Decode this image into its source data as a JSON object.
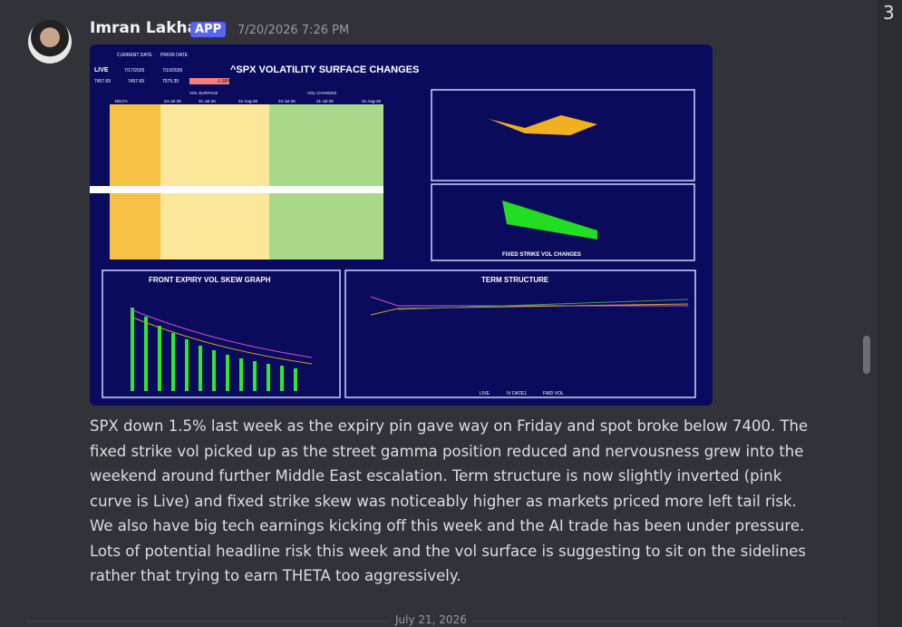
{
  "message": {
    "author": "Imran Lakha",
    "badge": "APP",
    "timestamp": "7/20/2026 7:26 PM",
    "lines": [
      "SPX down 1.5% last week as the expiry pin gave way on Friday and spot broke below 7400.   The",
      "fixed strike vol picked up as the street gamma position reduced and nervousness grew into the",
      "weekend around further Middle East escalation.  Term structure is now slightly inverted (pink",
      "curve is Live) and fixed strike skew was noticeably higher as markets priced more left tail risk.",
      "We also have big tech earnings kicking off this week and the AI trade has been under pressure.",
      "Lots of potential headline risk this week and the vol surface is suggesting to sit on the sidelines",
      "rather that trying to earn THETA too aggressively."
    ]
  },
  "dashboard": {
    "title": "^SPX VOLATILITY SURFACE CHANGES",
    "current_date_label": "CURRENT DATE",
    "prior_date_label": "PRIOR DATE",
    "live_label": "LIVE",
    "current_date": "7/17/2026",
    "prior_date": "7/10/2026",
    "current_price": "7457.69",
    "prior_price": "7575.39",
    "change": "-1.55%",
    "delta_label": "DELTA",
    "vol_surface_label": "VOL SURFACE",
    "vol_changes_label": "VOL CHANGES",
    "expiries": [
      "24-Jul-26",
      "31-Jul-26",
      "21-Aug-26"
    ],
    "fixed_strike_title": "FIXED STRIKE VOL CHANGES",
    "skew_title": "FRONT EXPIRY VOL SKEW GRAPH",
    "term_title": "TERM STRUCTURE",
    "term_legend": [
      "LIVE",
      "IV DATE1",
      "FWD VOL"
    ]
  },
  "divider_date": "July 21, 2026",
  "side_digit": "3"
}
